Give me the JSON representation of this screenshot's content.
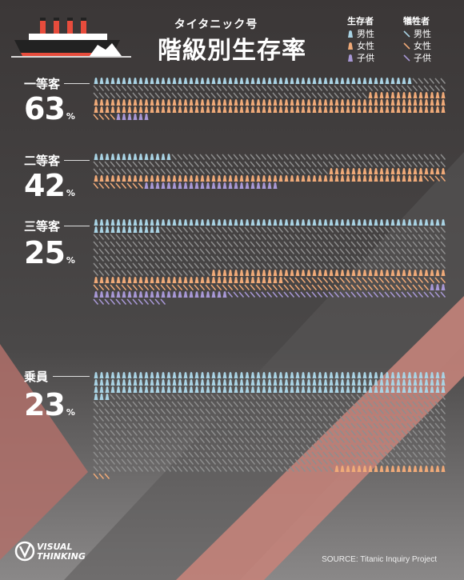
{
  "title_small": "タイタニック号",
  "title_main": "階級別生存率",
  "legend": {
    "survived_header": "生存者",
    "died_header": "犠牲者",
    "items": [
      "男性",
      "女性",
      "子供"
    ]
  },
  "colors": {
    "background": "#3a3838",
    "male": "#a9d3e4",
    "female": "#f0aa78",
    "child": "#a898d6",
    "dead": "#8e8e8e",
    "band": "#c4837a"
  },
  "classes": [
    {
      "name": "一等客",
      "rate": "63",
      "unit": "%"
    },
    {
      "name": "二等客",
      "rate": "42",
      "unit": "%"
    },
    {
      "name": "三等客",
      "rate": "25",
      "unit": "%"
    },
    {
      "name": "乗員",
      "rate": "23",
      "unit": "%"
    }
  ],
  "source": "SOURCE: Titanic Inquiry Project",
  "logo": {
    "line1": "VISUAL",
    "line2": "THINKING"
  },
  "chart_data": {
    "type": "pictogram",
    "title": "階級別生存率",
    "icon_unit": "1人",
    "groups": [
      {
        "class": "一等客",
        "survival_rate_pct": 63,
        "survived": {
          "男性": 57,
          "女性": 140,
          "子供": 6
        },
        "died": {
          "男性": 118,
          "女性": 4,
          "子供": 0
        }
      },
      {
        "class": "二等客",
        "survival_rate_pct": 42,
        "survived": {
          "男性": 14,
          "女性": 80,
          "子供": 24
        },
        "died": {
          "男性": 154,
          "女性": 13,
          "子供": 0
        }
      },
      {
        "class": "三等客",
        "survival_rate_pct": 25,
        "survived": {
          "男性": 75,
          "女性": 76,
          "子供": 27
        },
        "died": {
          "男性": 387,
          "女性": 89,
          "子供": 52
        }
      },
      {
        "class": "乗員",
        "survival_rate_pct": 23,
        "survived": {
          "男性": 192,
          "女性": 20,
          "子供": 0
        },
        "died": {
          "男性": 670,
          "女性": 3,
          "子供": 0
        }
      }
    ]
  }
}
